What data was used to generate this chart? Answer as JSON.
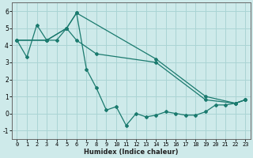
{
  "xlabel": "Humidex (Indice chaleur)",
  "bg_color": "#ceeaea",
  "grid_color": "#aad4d4",
  "line_color": "#1a7a6e",
  "line1": {
    "x": [
      0,
      1,
      2,
      3,
      4,
      5,
      6,
      7,
      8,
      9,
      10,
      11,
      12,
      13,
      14,
      15,
      16,
      17,
      18,
      19,
      20,
      21,
      22,
      23
    ],
    "y": [
      4.3,
      3.3,
      5.2,
      4.3,
      4.3,
      5.0,
      5.9,
      2.6,
      1.5,
      0.2,
      0.4,
      -0.7,
      0.0,
      -0.2,
      -0.1,
      0.1,
      0.0,
      -0.1,
      -0.1,
      0.1,
      0.5,
      0.5,
      0.6,
      0.8
    ]
  },
  "line2": {
    "x": [
      0,
      3,
      5,
      6,
      14,
      19,
      22,
      23
    ],
    "y": [
      4.3,
      4.3,
      5.0,
      5.9,
      3.2,
      1.0,
      0.6,
      0.8
    ]
  },
  "line3": {
    "x": [
      0,
      3,
      5,
      6,
      8,
      14,
      19,
      22,
      23
    ],
    "y": [
      4.3,
      4.3,
      5.0,
      4.3,
      3.5,
      3.0,
      0.8,
      0.6,
      0.8
    ]
  },
  "xlim": [
    -0.5,
    23.5
  ],
  "ylim": [
    -1.5,
    6.5
  ],
  "xticks": [
    0,
    1,
    2,
    3,
    4,
    5,
    6,
    7,
    8,
    9,
    10,
    11,
    12,
    13,
    14,
    15,
    16,
    17,
    18,
    19,
    20,
    21,
    22,
    23
  ],
  "yticks": [
    -1,
    0,
    1,
    2,
    3,
    4,
    5,
    6
  ]
}
